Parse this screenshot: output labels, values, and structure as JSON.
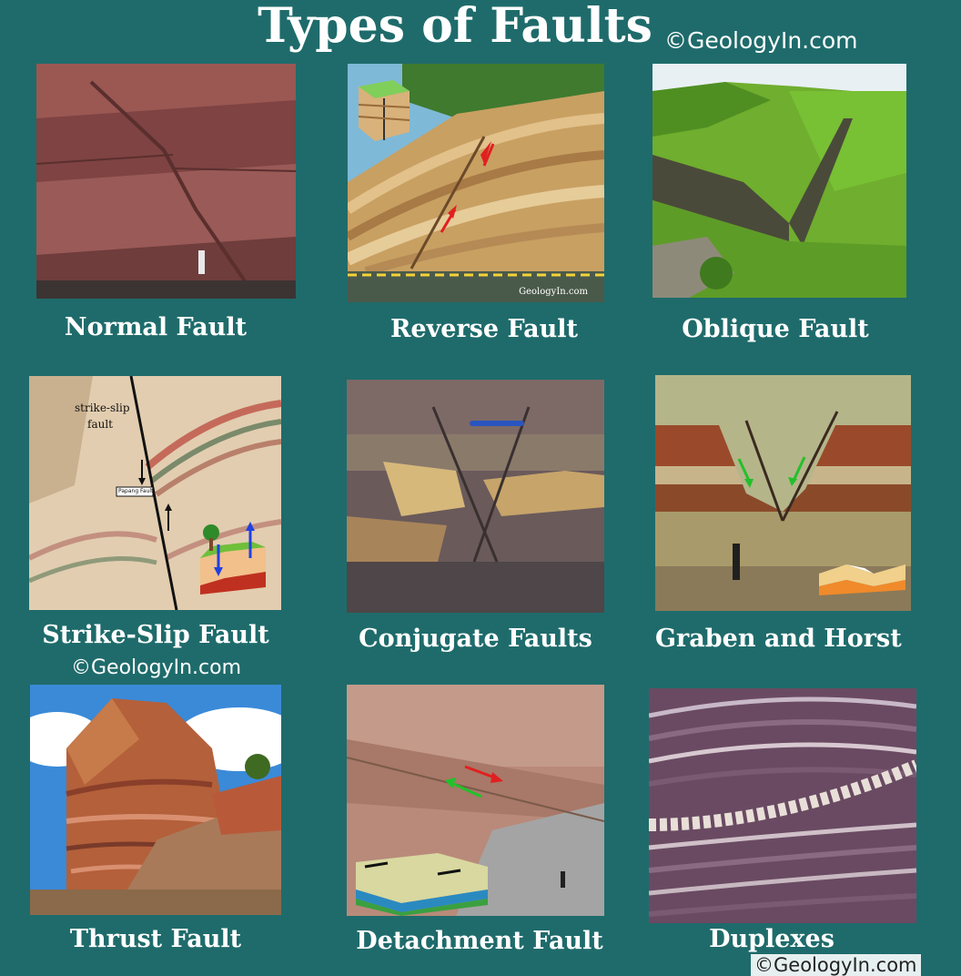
{
  "title": "Types of Faults",
  "credits": {
    "top": "©GeologyIn.com",
    "middle": "©GeologyIn.com",
    "bottom": "©GeologyIn.com"
  },
  "panels": [
    {
      "caption": "Normal Fault"
    },
    {
      "caption": "Reverse Fault",
      "watermark": "GeologyIn.com"
    },
    {
      "caption": "Oblique Fault"
    },
    {
      "caption": "Strike-Slip Fault",
      "label_main": "strike-slip",
      "label_sub": "fault",
      "label_fault": "Papang Fault"
    },
    {
      "caption": "Conjugate Faults"
    },
    {
      "caption": "Graben and Horst"
    },
    {
      "caption": "Thrust Fault"
    },
    {
      "caption": "Detachment Fault"
    },
    {
      "caption": "Duplexes"
    }
  ],
  "colors": {
    "background": "#1f6b6b",
    "text": "#ffffff",
    "arrow_red": "#e02020",
    "arrow_green": "#22c02a",
    "arrow_blue": "#2040e0"
  }
}
